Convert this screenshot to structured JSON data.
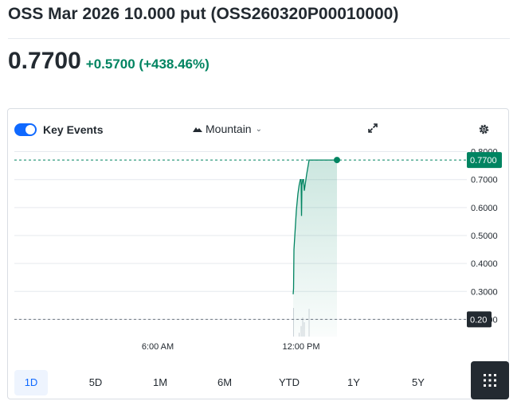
{
  "header": {
    "title": "OSS Mar 2026 10.000 put (OSS260320P00010000)",
    "price": "0.7700",
    "change": "+0.5700 (+438.46%)"
  },
  "toolbar": {
    "key_events_label": "Key Events",
    "key_events_enabled": true,
    "chart_type_label": "Mountain",
    "expand_icon": "expand-icon",
    "settings_icon": "gear-icon"
  },
  "colors": {
    "accent": "#0f69ff",
    "positive": "#008461",
    "dark_tag": "#232a31"
  },
  "chart_data": {
    "type": "area",
    "x_tick_labels": [
      "6:00 AM",
      "12:00 PM"
    ],
    "y_tick_labels": [
      "0.8000",
      "0.7000",
      "0.6000",
      "0.5000",
      "0.4000",
      "0.3000",
      "0.2000"
    ],
    "ylim": [
      0.15,
      0.83
    ],
    "grid": true,
    "current_price_label": "0.7700",
    "previous_close_label": "0.20",
    "current_price": 0.77,
    "previous_close": 0.2,
    "series": [
      {
        "x": [
          "11:40 AM",
          "11:41 AM",
          "11:42 AM",
          "11:45 AM",
          "11:48 AM",
          "11:50 AM",
          "11:52 AM",
          "11:55 AM",
          "11:58 AM",
          "12:00 PM",
          "12:01 PM",
          "12:02 PM",
          "12:04 PM",
          "12:06 PM",
          "12:08 PM",
          "12:10 PM",
          "12:14 PM",
          "12:20 PM",
          "12:30 PM",
          "12:45 PM",
          "1:00 PM",
          "1:15 PM",
          "1:30 PM"
        ],
        "values": [
          0.29,
          0.31,
          0.45,
          0.52,
          0.59,
          0.62,
          0.65,
          0.68,
          0.7,
          0.7,
          0.57,
          0.68,
          0.7,
          0.7,
          0.66,
          0.68,
          0.72,
          0.77,
          0.77,
          0.77,
          0.77,
          0.77,
          0.77
        ]
      }
    ],
    "volume": {
      "x": [
        "11:41 AM",
        "11:55 AM",
        "12:00 PM",
        "12:04 PM",
        "12:08 PM",
        "12:20 PM"
      ],
      "values": [
        60,
        8,
        22,
        40,
        30,
        58
      ]
    }
  },
  "ranges": {
    "items": [
      "1D",
      "5D",
      "1M",
      "6M",
      "YTD",
      "1Y",
      "5Y"
    ],
    "active": "1D"
  }
}
